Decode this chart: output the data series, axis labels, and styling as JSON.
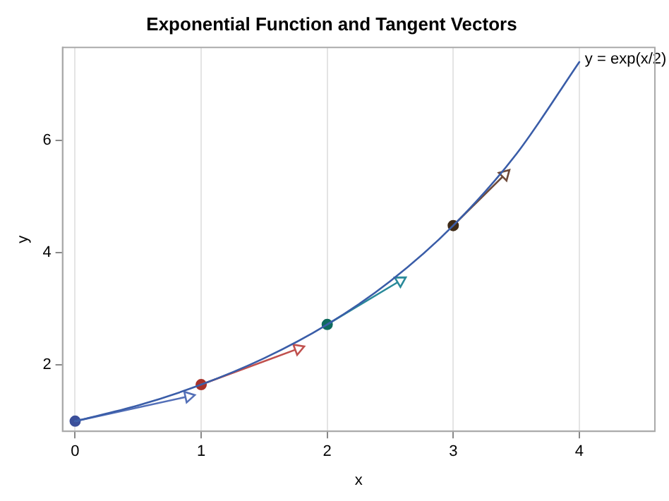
{
  "chart_data": {
    "type": "line",
    "title": "Exponential Function and Tangent Vectors",
    "xlabel": "x",
    "ylabel": "y",
    "xlim": [
      -0.1,
      4.6
    ],
    "xticks": [
      0,
      1,
      2,
      3,
      4
    ],
    "ylim": [
      0.82,
      7.65
    ],
    "yticks": [
      2,
      4,
      6
    ],
    "grid": "x",
    "legend": false,
    "series": [
      {
        "name": "y = exp(x/2)",
        "color": "#3a5da8",
        "marker": "none",
        "x": [
          0,
          0.5,
          1,
          1.5,
          2,
          2.5,
          3,
          3.5,
          4
        ],
        "values": [
          1,
          1.28,
          1.65,
          2.12,
          2.72,
          3.49,
          4.48,
          5.75,
          7.39
        ]
      },
      {
        "type": "line",
        "color": "#5470b8",
        "marker": "triangle",
        "x": [
          0,
          0.9
        ],
        "values": [
          1,
          1.44
        ]
      },
      {
        "type": "line",
        "color": "#c0504d",
        "marker": "triangle",
        "x": [
          1,
          1.77
        ],
        "values": [
          1.65,
          2.29
        ]
      },
      {
        "type": "line",
        "color": "#2a8a9a",
        "marker": "triangle",
        "x": [
          2,
          2.58
        ],
        "values": [
          2.72,
          3.5
        ]
      },
      {
        "type": "line",
        "color": "#6e4a3a",
        "marker": "triangle",
        "x": [
          3,
          3.41
        ],
        "values": [
          4.48,
          5.39
        ]
      },
      {
        "type": "scatter",
        "marker": "circle",
        "x": [
          0,
          1,
          2,
          3
        ],
        "values": [
          1,
          1.65,
          2.72,
          4.48
        ],
        "colors": [
          "#3b4f9a",
          "#a8322a",
          "#0e6b5e",
          "#3e2a16"
        ]
      }
    ]
  }
}
